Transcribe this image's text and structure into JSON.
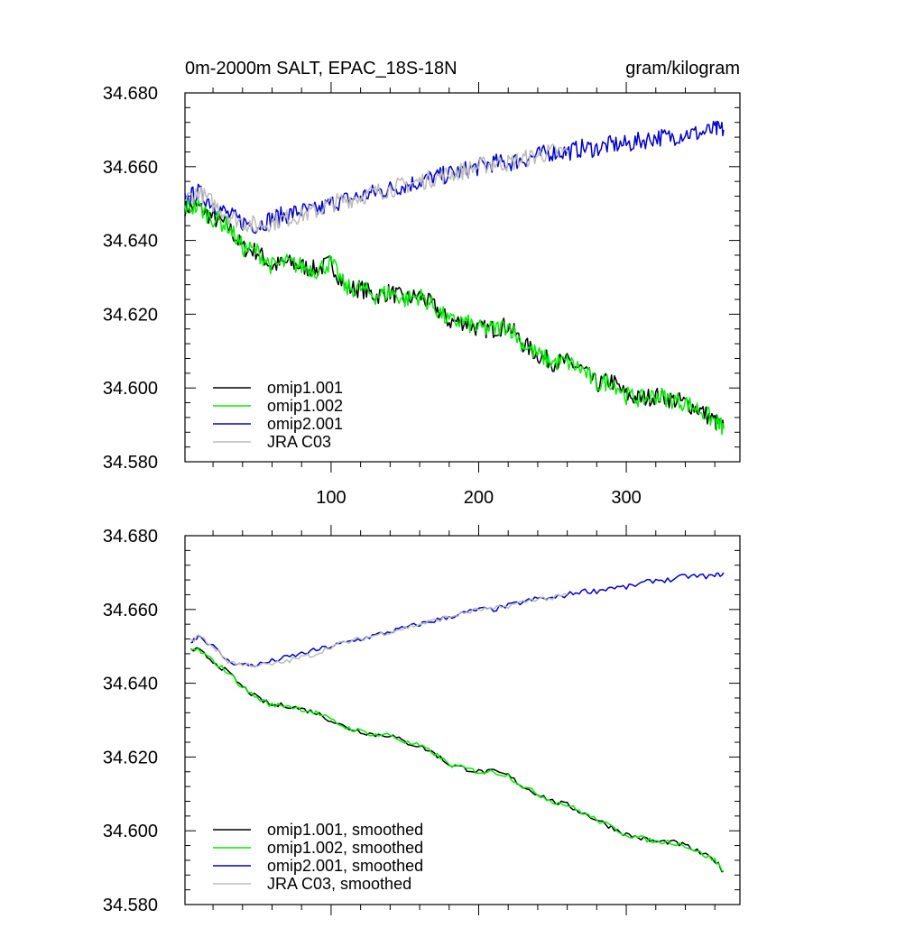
{
  "figure": {
    "title_left": "0m-2000m SALT, EPAC_18S-18N",
    "title_right": "gram/kilogram"
  },
  "chart_data": [
    {
      "type": "line",
      "panel": "top",
      "title": "0m-2000m SALT, EPAC_18S-18N",
      "units": "gram/kilogram",
      "xlim": [
        1,
        377
      ],
      "ylim": [
        34.58,
        34.68
      ],
      "xticks": [
        100,
        200,
        300
      ],
      "xtick_labels": [
        "100",
        "200",
        "300"
      ],
      "yticks": [
        34.58,
        34.6,
        34.62,
        34.64,
        34.66,
        34.68
      ],
      "ytick_labels": [
        "34.580",
        "34.600",
        "34.620",
        "34.640",
        "34.660",
        "34.680"
      ],
      "grid": false,
      "legend_position": "bottom-left",
      "series": [
        {
          "name": "omip1.001",
          "color": "#000000",
          "x": [
            1,
            10,
            20,
            30,
            40,
            50,
            60,
            70,
            80,
            90,
            100,
            110,
            120,
            130,
            140,
            150,
            160,
            170,
            180,
            190,
            200,
            210,
            220,
            230,
            240,
            250,
            260,
            270,
            280,
            290,
            300,
            310,
            320,
            330,
            340,
            350,
            360,
            366
          ],
          "y": [
            34.649,
            34.649,
            34.646,
            34.644,
            34.638,
            34.637,
            34.633,
            34.634,
            34.633,
            34.632,
            34.634,
            34.627,
            34.627,
            34.625,
            34.626,
            34.624,
            34.625,
            34.622,
            34.618,
            34.618,
            34.616,
            34.616,
            34.617,
            34.612,
            34.609,
            34.607,
            34.607,
            34.605,
            34.601,
            34.602,
            34.598,
            34.597,
            34.598,
            34.597,
            34.596,
            34.594,
            34.591,
            34.589
          ]
        },
        {
          "name": "omip1.002",
          "color": "#00ee00",
          "x": [
            1,
            10,
            20,
            30,
            40,
            50,
            60,
            70,
            80,
            90,
            100,
            110,
            120,
            130,
            140,
            150,
            160,
            170,
            180,
            190,
            200,
            210,
            220,
            230,
            240,
            250,
            260,
            270,
            280,
            290,
            300,
            310,
            320,
            330,
            340,
            350,
            360,
            366
          ],
          "y": [
            34.649,
            34.649,
            34.646,
            34.644,
            34.638,
            34.637,
            34.633,
            34.634,
            34.633,
            34.632,
            34.634,
            34.627,
            34.627,
            34.625,
            34.626,
            34.624,
            34.625,
            34.622,
            34.618,
            34.618,
            34.616,
            34.616,
            34.617,
            34.612,
            34.609,
            34.607,
            34.607,
            34.605,
            34.601,
            34.602,
            34.598,
            34.597,
            34.598,
            34.597,
            34.596,
            34.594,
            34.591,
            34.589
          ]
        },
        {
          "name": "omip2.001",
          "color": "#0000cc",
          "x": [
            1,
            10,
            20,
            30,
            40,
            50,
            60,
            70,
            80,
            90,
            100,
            110,
            120,
            130,
            140,
            150,
            160,
            170,
            180,
            190,
            200,
            210,
            220,
            230,
            240,
            250,
            260,
            270,
            280,
            290,
            300,
            310,
            320,
            330,
            340,
            350,
            360,
            366
          ],
          "y": [
            34.651,
            34.653,
            34.65,
            34.647,
            34.645,
            34.644,
            34.646,
            34.647,
            34.648,
            34.648,
            34.65,
            34.651,
            34.652,
            34.653,
            34.654,
            34.655,
            34.656,
            34.657,
            34.658,
            34.659,
            34.66,
            34.661,
            34.661,
            34.662,
            34.663,
            34.664,
            34.664,
            34.665,
            34.665,
            34.666,
            34.666,
            34.667,
            34.668,
            34.668,
            34.669,
            34.669,
            34.67,
            34.67
          ]
        },
        {
          "name": "JRA C03",
          "color": "#bbbbbb",
          "x": [
            1,
            10,
            20,
            30,
            40,
            50,
            60,
            70,
            80,
            90,
            100,
            110,
            120,
            130,
            140,
            150,
            160,
            170,
            180,
            190,
            200,
            210,
            220,
            230,
            240,
            250,
            260
          ],
          "y": [
            34.651,
            34.653,
            34.65,
            34.647,
            34.645,
            34.644,
            34.645,
            34.646,
            34.647,
            34.648,
            34.65,
            34.651,
            34.652,
            34.653,
            34.654,
            34.655,
            34.656,
            34.657,
            34.658,
            34.659,
            34.66,
            34.661,
            34.661,
            34.662,
            34.663,
            34.664,
            34.664
          ]
        }
      ]
    },
    {
      "type": "line",
      "panel": "bottom",
      "xlim": [
        1,
        377
      ],
      "ylim": [
        34.58,
        34.68
      ],
      "xticks": [
        100,
        200,
        300
      ],
      "yticks": [
        34.58,
        34.6,
        34.62,
        34.64,
        34.66,
        34.68
      ],
      "ytick_labels": [
        "34.580",
        "34.600",
        "34.620",
        "34.640",
        "34.660",
        "34.680"
      ],
      "grid": false,
      "legend_position": "bottom-left",
      "series": [
        {
          "name": "omip1.001, smoothed",
          "color": "#000000",
          "x": [
            5,
            10,
            20,
            30,
            40,
            50,
            60,
            70,
            80,
            90,
            100,
            110,
            120,
            130,
            140,
            150,
            160,
            170,
            180,
            190,
            200,
            210,
            220,
            230,
            240,
            250,
            260,
            270,
            280,
            290,
            300,
            310,
            320,
            330,
            340,
            350,
            360,
            366
          ],
          "y": [
            34.649,
            34.649,
            34.646,
            34.643,
            34.639,
            34.636,
            34.634,
            34.634,
            34.633,
            34.632,
            34.63,
            34.628,
            34.627,
            34.626,
            34.626,
            34.624,
            34.623,
            34.621,
            34.618,
            34.617,
            34.616,
            34.616,
            34.615,
            34.612,
            34.61,
            34.608,
            34.607,
            34.605,
            34.603,
            34.601,
            34.599,
            34.598,
            34.597,
            34.597,
            34.596,
            34.594,
            34.592,
            34.589
          ]
        },
        {
          "name": "omip1.002, smoothed",
          "color": "#00ee00",
          "x": [
            5,
            10,
            20,
            30,
            40,
            50,
            60,
            70,
            80,
            90,
            100,
            110,
            120,
            130,
            140,
            150,
            160,
            170,
            180,
            190,
            200,
            210,
            220,
            230,
            240,
            250,
            260,
            270,
            280,
            290,
            300,
            310,
            320,
            330,
            340,
            350,
            360,
            366
          ],
          "y": [
            34.649,
            34.649,
            34.646,
            34.643,
            34.639,
            34.636,
            34.634,
            34.634,
            34.633,
            34.632,
            34.63,
            34.628,
            34.627,
            34.626,
            34.626,
            34.624,
            34.623,
            34.621,
            34.618,
            34.617,
            34.616,
            34.616,
            34.615,
            34.612,
            34.61,
            34.608,
            34.607,
            34.605,
            34.603,
            34.601,
            34.599,
            34.598,
            34.597,
            34.597,
            34.596,
            34.594,
            34.592,
            34.589
          ]
        },
        {
          "name": "omip2.001, smoothed",
          "color": "#0000cc",
          "x": [
            5,
            10,
            20,
            30,
            40,
            50,
            60,
            70,
            80,
            90,
            100,
            110,
            120,
            130,
            140,
            150,
            160,
            170,
            180,
            190,
            200,
            210,
            220,
            230,
            240,
            250,
            260,
            270,
            280,
            290,
            300,
            310,
            320,
            330,
            340,
            350,
            360,
            366
          ],
          "y": [
            34.651,
            34.653,
            34.65,
            34.646,
            34.645,
            34.645,
            34.646,
            34.647,
            34.648,
            34.649,
            34.65,
            34.651,
            34.652,
            34.653,
            34.654,
            34.655,
            34.656,
            34.657,
            34.658,
            34.659,
            34.66,
            34.66,
            34.661,
            34.662,
            34.663,
            34.663,
            34.664,
            34.665,
            34.665,
            34.666,
            34.666,
            34.667,
            34.668,
            34.668,
            34.669,
            34.669,
            34.669,
            34.67
          ]
        },
        {
          "name": "JRA C03, smoothed",
          "color": "#bbbbbb",
          "x": [
            5,
            10,
            20,
            30,
            40,
            50,
            60,
            70,
            80,
            90,
            100,
            110,
            120,
            130,
            140,
            150,
            160,
            170,
            180,
            190,
            200,
            210,
            220,
            230,
            240,
            250,
            260
          ],
          "y": [
            34.651,
            34.653,
            34.65,
            34.646,
            34.645,
            34.645,
            34.645,
            34.646,
            34.647,
            34.648,
            34.65,
            34.651,
            34.652,
            34.653,
            34.654,
            34.655,
            34.656,
            34.657,
            34.658,
            34.659,
            34.66,
            34.66,
            34.661,
            34.662,
            34.663,
            34.663,
            34.664
          ]
        }
      ]
    }
  ]
}
